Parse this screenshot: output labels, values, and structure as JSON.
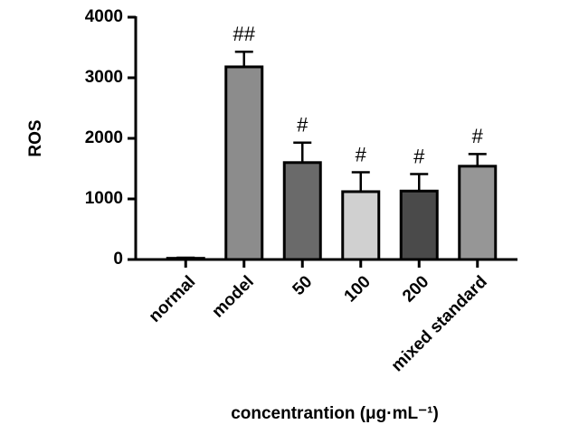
{
  "chart_data": {
    "type": "bar",
    "y_label": "ROS",
    "x_label": "concentrantion (μg·mL⁻¹)",
    "categories": [
      "normal",
      "model",
      "50",
      "100",
      "200",
      "mixed standard"
    ],
    "values": [
      20,
      3180,
      1600,
      1120,
      1130,
      1540
    ],
    "errors": [
      10,
      250,
      330,
      320,
      280,
      200
    ],
    "colors": [
      "#f0f0f0",
      "#8c8c8c",
      "#6a6a6a",
      "#d0d0d0",
      "#4a4a4a",
      "#969696"
    ],
    "annotations": [
      null,
      "##",
      "#",
      "#",
      "#",
      "#"
    ],
    "ylim": [
      0,
      4000
    ],
    "yticks": [
      0,
      1000,
      2000,
      3000,
      4000
    ]
  }
}
